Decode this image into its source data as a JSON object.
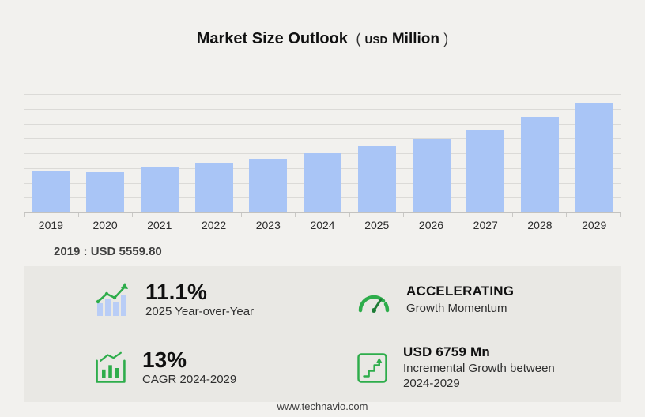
{
  "title": {
    "main": "Market Size Outlook",
    "paren_open": "(",
    "unit_small": "USD",
    "unit_word": "Million",
    "paren_close": ")"
  },
  "chart_data": {
    "type": "bar",
    "title": "Market Size Outlook (USD Million)",
    "categories": [
      "2019",
      "2020",
      "2021",
      "2022",
      "2023",
      "2024",
      "2025",
      "2026",
      "2027",
      "2028",
      "2029"
    ],
    "values": [
      5559.8,
      5450,
      6100,
      6600,
      7300,
      8027,
      8918,
      9950,
      11200,
      12900,
      14786
    ],
    "xlabel": "",
    "ylabel": "USD Million",
    "ylim": [
      0,
      15800
    ],
    "grid": true,
    "gridline_count": 8,
    "legend": "none",
    "bar_color": "#a9c5f6",
    "annotation": "2019 : USD 5559.80"
  },
  "annotation": {
    "text": "2019 : USD 5559.80"
  },
  "stats": {
    "yoy": {
      "value": "11.1%",
      "label": "2025 Year-over-Year"
    },
    "momentum": {
      "value": "ACCELERATING",
      "label": "Growth Momentum"
    },
    "cagr": {
      "value": "13%",
      "label": "CAGR 2024-2029"
    },
    "incremental": {
      "value": "USD 6759 Mn",
      "label": "Incremental Growth between 2024-2029"
    }
  },
  "footer": {
    "text": "www.technavio.com"
  },
  "colors": {
    "accent_green": "#2ead4b",
    "bar_blue": "#a9c5f6",
    "panel_bg": "#e9e8e4"
  }
}
